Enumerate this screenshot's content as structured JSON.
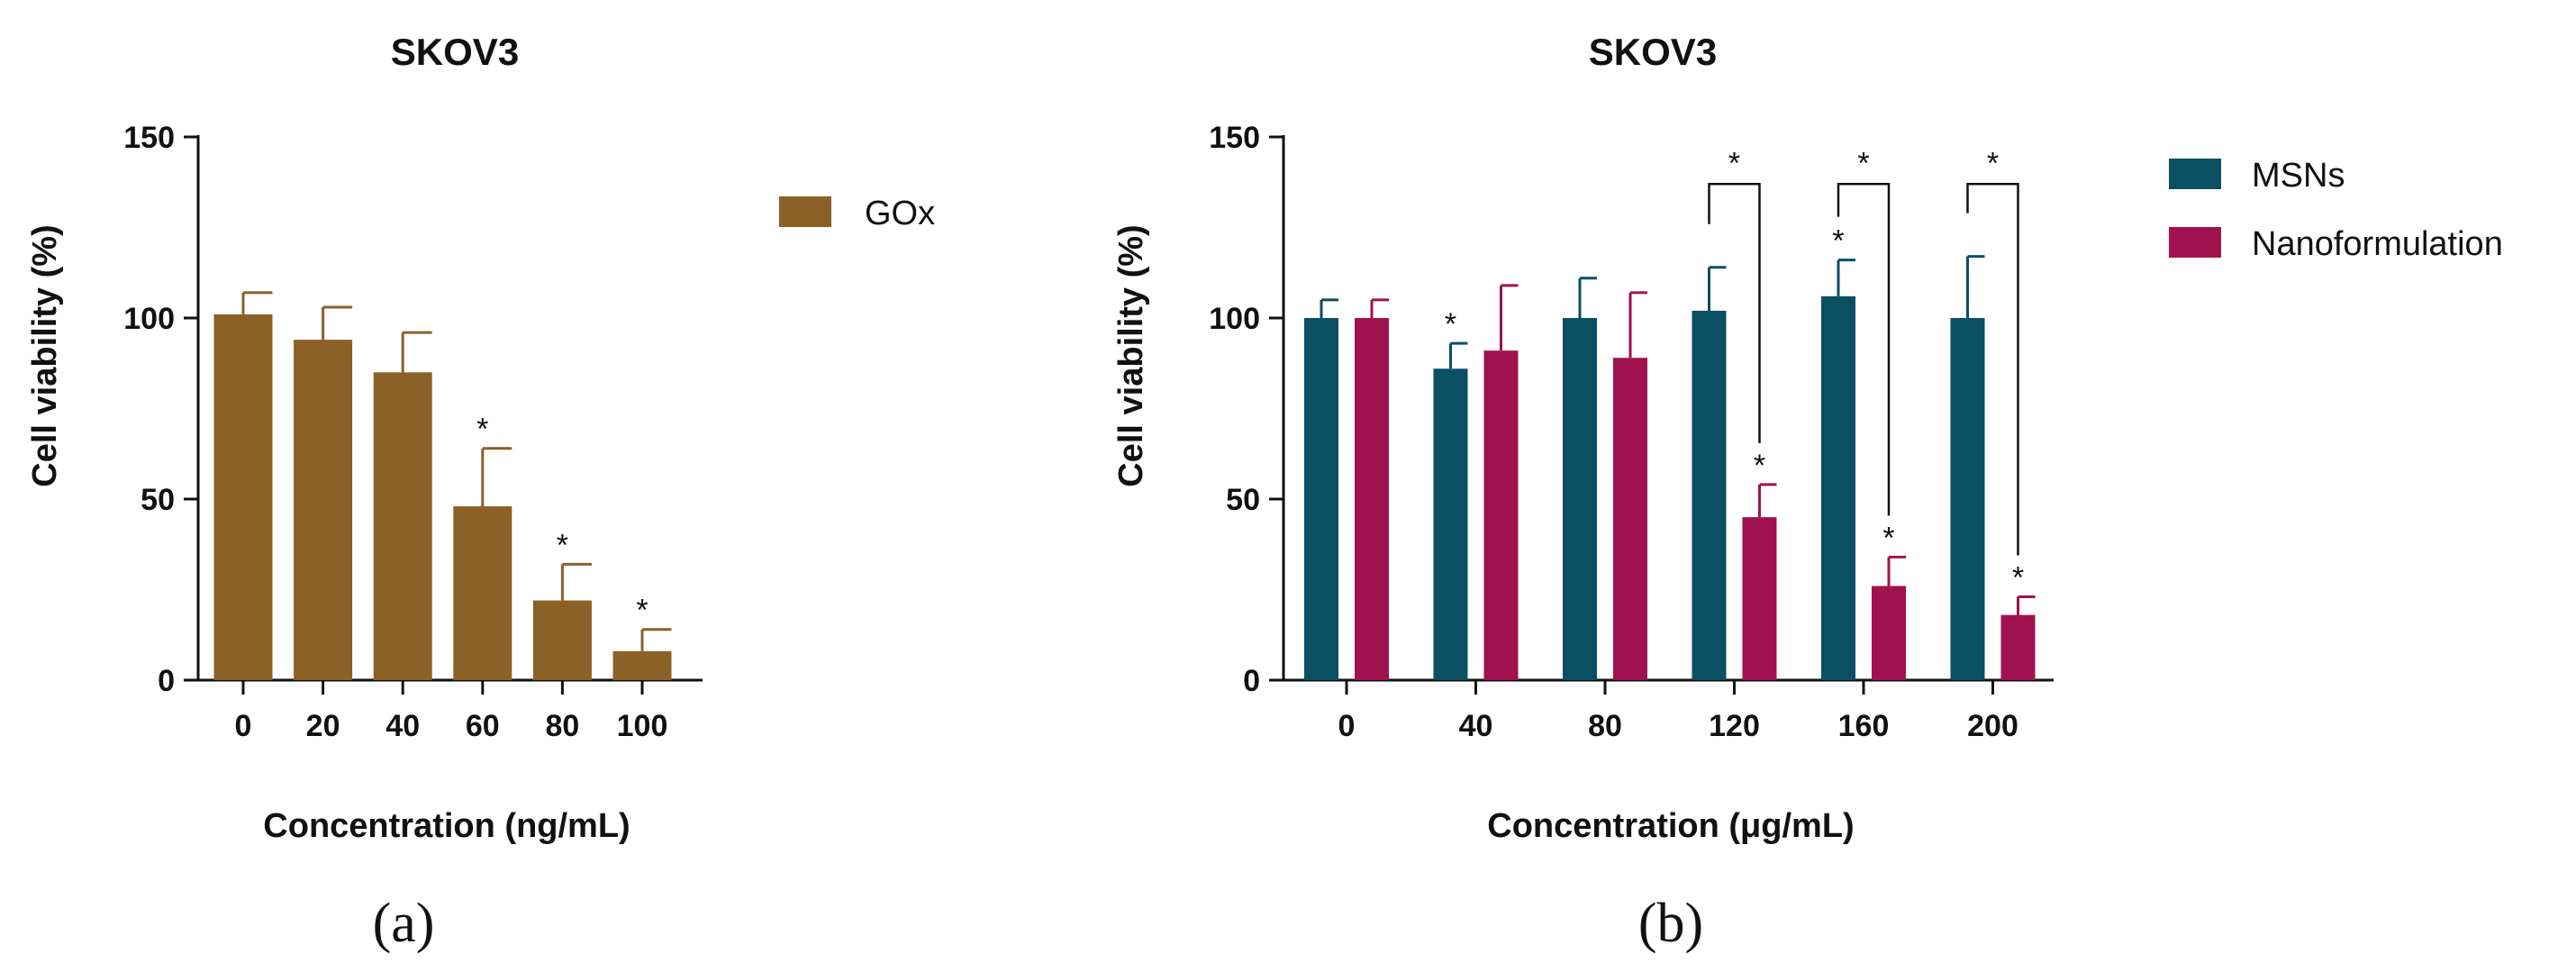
{
  "chart_data": [
    {
      "type": "bar",
      "panel": "(a)",
      "title": "SKOV3",
      "xlabel": "Concentration (ng/mL)",
      "ylabel": "Cell viability (%)",
      "ylim": [
        0,
        150
      ],
      "yticks": [
        0,
        50,
        100,
        150
      ],
      "categories": [
        "0",
        "20",
        "40",
        "60",
        "80",
        "100"
      ],
      "legend_position": "top-right",
      "series": [
        {
          "name": "GOx",
          "color": "#8B6128",
          "values": [
            101,
            94,
            85,
            48,
            22,
            8
          ],
          "errors": [
            6,
            9,
            11,
            16,
            10,
            6
          ],
          "significant": [
            false,
            false,
            false,
            true,
            true,
            true
          ]
        }
      ],
      "brackets": []
    },
    {
      "type": "bar",
      "panel": "(b)",
      "title": "SKOV3",
      "xlabel": "Concentration (μg/mL)",
      "ylabel": "Cell viability (%)",
      "ylim": [
        0,
        150
      ],
      "yticks": [
        0,
        50,
        100,
        150
      ],
      "categories": [
        "0",
        "40",
        "80",
        "120",
        "160",
        "200"
      ],
      "legend_position": "top-right",
      "series": [
        {
          "name": "MSNs",
          "color": "#0B4F63",
          "values": [
            100,
            86,
            100,
            102,
            106,
            100
          ],
          "errors": [
            5,
            7,
            11,
            12,
            10,
            17
          ],
          "significant": [
            false,
            true,
            false,
            false,
            true,
            false
          ]
        },
        {
          "name": "Nanoformulation",
          "color": "#A0124F",
          "values": [
            100,
            91,
            89,
            45,
            26,
            18
          ],
          "errors": [
            5,
            18,
            18,
            9,
            8,
            5
          ],
          "significant": [
            false,
            false,
            false,
            true,
            true,
            true
          ]
        }
      ],
      "brackets": [
        {
          "category": "120",
          "label": "*"
        },
        {
          "category": "160",
          "label": "*"
        },
        {
          "category": "200",
          "label": "*"
        }
      ]
    }
  ]
}
